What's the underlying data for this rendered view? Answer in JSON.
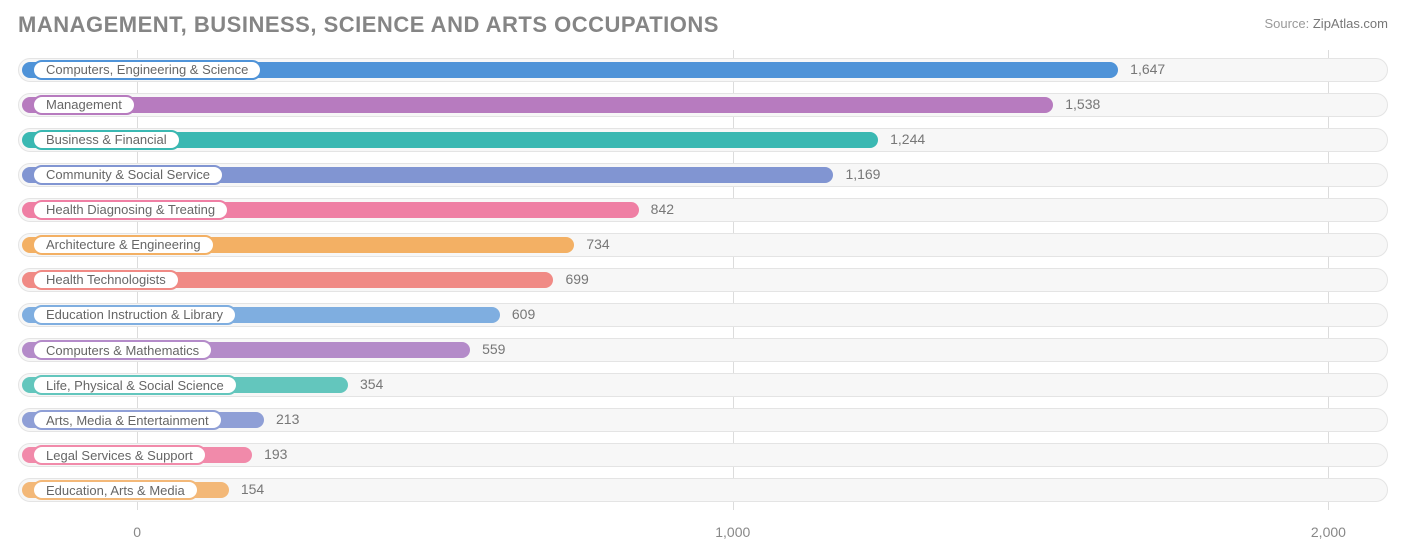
{
  "title": "MANAGEMENT, BUSINESS, SCIENCE AND ARTS OCCUPATIONS",
  "source_prefix": "Source: ",
  "source_name": "ZipAtlas.com",
  "chart": {
    "type": "bar-horizontal",
    "xlim": [
      -200,
      2100
    ],
    "ticks": [
      0,
      1000,
      2000
    ],
    "tick_labels": [
      "0",
      "1,000",
      "2,000"
    ],
    "background_color": "#ffffff",
    "track_color": "#f7f7f7",
    "track_border": "#e4e4e4",
    "grid_color": "#dcdcdc",
    "label_fontsize": 13,
    "value_fontsize": 14,
    "bars": [
      {
        "label": "Computers, Engineering & Science",
        "value": 1647,
        "value_text": "1,647",
        "color": "#4f93d8"
      },
      {
        "label": "Management",
        "value": 1538,
        "value_text": "1,538",
        "color": "#b77bbf"
      },
      {
        "label": "Business & Financial",
        "value": 1244,
        "value_text": "1,244",
        "color": "#3ab8b2"
      },
      {
        "label": "Community & Social Service",
        "value": 1169,
        "value_text": "1,169",
        "color": "#8195d2"
      },
      {
        "label": "Health Diagnosing & Treating",
        "value": 842,
        "value_text": "842",
        "color": "#ef7fa4"
      },
      {
        "label": "Architecture & Engineering",
        "value": 734,
        "value_text": "734",
        "color": "#f3b064"
      },
      {
        "label": "Health Technologists",
        "value": 699,
        "value_text": "699",
        "color": "#f08a85"
      },
      {
        "label": "Education Instruction & Library",
        "value": 609,
        "value_text": "609",
        "color": "#7faee0"
      },
      {
        "label": "Computers & Mathematics",
        "value": 559,
        "value_text": "559",
        "color": "#b48bc9"
      },
      {
        "label": "Life, Physical & Social Science",
        "value": 354,
        "value_text": "354",
        "color": "#63c6bd"
      },
      {
        "label": "Arts, Media & Entertainment",
        "value": 213,
        "value_text": "213",
        "color": "#8f9fd6"
      },
      {
        "label": "Legal Services & Support",
        "value": 193,
        "value_text": "193",
        "color": "#f18aaa"
      },
      {
        "label": "Education, Arts & Media",
        "value": 154,
        "value_text": "154",
        "color": "#f3b878"
      }
    ]
  }
}
